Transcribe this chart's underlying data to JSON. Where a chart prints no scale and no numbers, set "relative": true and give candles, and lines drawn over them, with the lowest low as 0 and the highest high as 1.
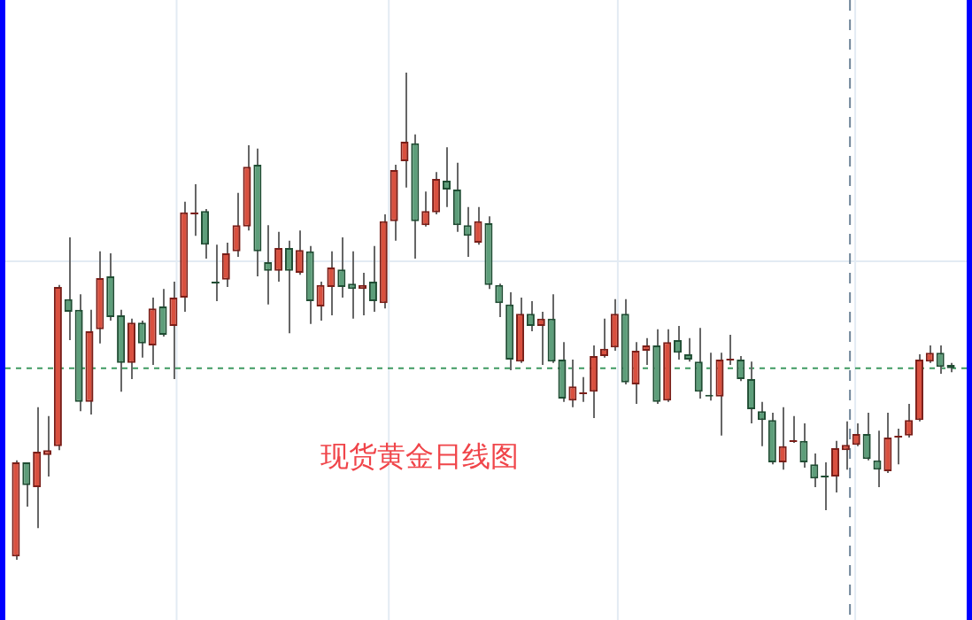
{
  "chart_data": {
    "type": "candlestick",
    "title": "现货黄金日线图",
    "relative": true,
    "categories": [
      null,
      null,
      null,
      null,
      null,
      null,
      null,
      null,
      null,
      null,
      null,
      null,
      null,
      null,
      null,
      null,
      null,
      null,
      null,
      null,
      null,
      null,
      null,
      null,
      null,
      null,
      null,
      null,
      null,
      null,
      null,
      null,
      null,
      null,
      null,
      null,
      null,
      null,
      null,
      null,
      null,
      null,
      null,
      null,
      null,
      null,
      null,
      null,
      null,
      null,
      null,
      null,
      null,
      null,
      null,
      null,
      null,
      null,
      null,
      null,
      null,
      null,
      null,
      null,
      null,
      null,
      null,
      null,
      null,
      null,
      null,
      null,
      null,
      null,
      null,
      null,
      null,
      null,
      null,
      null,
      null,
      null,
      null,
      null,
      null,
      null,
      null,
      null,
      null,
      null
    ],
    "ohlc": [
      [
        0.007,
        0.204,
        0,
        0.2
      ],
      [
        0.2,
        0.2,
        0.109,
        0.153
      ],
      [
        0.149,
        0.313,
        0.065,
        0.222
      ],
      [
        0.215,
        0.295,
        0.171,
        0.225
      ],
      [
        0.233,
        0.564,
        0.225,
        0.56
      ],
      [
        0.535,
        0.662,
        0.451,
        0.509
      ],
      [
        0.513,
        0.545,
        0.305,
        0.324
      ],
      [
        0.324,
        0.513,
        0.298,
        0.469
      ],
      [
        0.473,
        0.633,
        0.444,
        0.578
      ],
      [
        0.582,
        0.629,
        0.491,
        0.498
      ],
      [
        0.502,
        0.513,
        0.345,
        0.404
      ],
      [
        0.404,
        0.495,
        0.371,
        0.487
      ],
      [
        0.487,
        0.491,
        0.415,
        0.444
      ],
      [
        0.44,
        0.538,
        0.4,
        0.516
      ],
      [
        0.52,
        0.556,
        0.458,
        0.462
      ],
      [
        0.48,
        0.571,
        0.371,
        0.538
      ],
      [
        0.538,
        0.735,
        0.509,
        0.713
      ],
      [
        0.709,
        0.771,
        0.665,
        0.713
      ],
      [
        0.716,
        0.72,
        0.618,
        0.647
      ],
      [
        0.571,
        0.647,
        0.531,
        0.567
      ],
      [
        0.575,
        0.651,
        0.56,
        0.629
      ],
      [
        0.633,
        0.753,
        0.622,
        0.687
      ],
      [
        0.684,
        0.851,
        0.676,
        0.807
      ],
      [
        0.811,
        0.844,
        0.582,
        0.633
      ],
      [
        0.611,
        0.687,
        0.524,
        0.593
      ],
      [
        0.593,
        0.673,
        0.571,
        0.64
      ],
      [
        0.64,
        0.655,
        0.465,
        0.593
      ],
      [
        0.589,
        0.676,
        0.585,
        0.636
      ],
      [
        0.633,
        0.644,
        0.484,
        0.531
      ],
      [
        0.52,
        0.571,
        0.491,
        0.564
      ],
      [
        0.56,
        0.633,
        0.502,
        0.6
      ],
      [
        0.596,
        0.662,
        0.538,
        0.56
      ],
      [
        0.567,
        0.633,
        0.495,
        0.556
      ],
      [
        0.556,
        0.589,
        0.502,
        0.564
      ],
      [
        0.571,
        0.644,
        0.509,
        0.531
      ],
      [
        0.527,
        0.709,
        0.516,
        0.695
      ],
      [
        0.695,
        0.811,
        0.655,
        0.8
      ],
      [
        0.818,
        1,
        0.764,
        0.858
      ],
      [
        0.855,
        0.873,
        0.618,
        0.695
      ],
      [
        0.687,
        0.756,
        0.684,
        0.716
      ],
      [
        0.713,
        0.796,
        0.709,
        0.782
      ],
      [
        0.778,
        0.847,
        0.724,
        0.76
      ],
      [
        0.76,
        0.815,
        0.673,
        0.687
      ],
      [
        0.687,
        0.724,
        0.622,
        0.665
      ],
      [
        0.651,
        0.724,
        0.647,
        0.695
      ],
      [
        0.691,
        0.705,
        0.556,
        0.564
      ],
      [
        0.564,
        0.567,
        0.498,
        0.527
      ],
      [
        0.524,
        0.549,
        0.389,
        0.411
      ],
      [
        0.407,
        0.538,
        0.404,
        0.505
      ],
      [
        0.505,
        0.531,
        0.469,
        0.48
      ],
      [
        0.48,
        0.509,
        0.4,
        0.495
      ],
      [
        0.495,
        0.545,
        0.404,
        0.407
      ],
      [
        0.411,
        0.447,
        0.324,
        0.331
      ],
      [
        0.327,
        0.411,
        0.313,
        0.356
      ],
      [
        0.34,
        0.375,
        0.324,
        0.342
      ],
      [
        0.345,
        0.44,
        0.291,
        0.418
      ],
      [
        0.418,
        0.495,
        0.415,
        0.433
      ],
      [
        0.436,
        0.535,
        0.429,
        0.505
      ],
      [
        0.505,
        0.535,
        0.36,
        0.364
      ],
      [
        0.36,
        0.447,
        0.32,
        0.429
      ],
      [
        0.429,
        0.455,
        0.4,
        0.44
      ],
      [
        0.44,
        0.473,
        0.32,
        0.324
      ],
      [
        0.327,
        0.473,
        0.324,
        0.447
      ],
      [
        0.451,
        0.48,
        0.411,
        0.425
      ],
      [
        0.422,
        0.455,
        0.407,
        0.411
      ],
      [
        0.407,
        0.476,
        0.331,
        0.345
      ],
      [
        0.338,
        0.425,
        0.327,
        0.335
      ],
      [
        0.335,
        0.425,
        0.255,
        0.411
      ],
      [
        0.409,
        0.462,
        0.4,
        0.411
      ],
      [
        0.411,
        0.418,
        0.367,
        0.371
      ],
      [
        0.371,
        0.407,
        0.28,
        0.309
      ],
      [
        0.305,
        0.324,
        0.233,
        0.287
      ],
      [
        0.287,
        0.302,
        0.196,
        0.2
      ],
      [
        0.2,
        0.313,
        0.185,
        0.233
      ],
      [
        0.242,
        0.295,
        0.24,
        0.244
      ],
      [
        0.244,
        0.28,
        0.189,
        0.2
      ],
      [
        0.196,
        0.218,
        0.149,
        0.167
      ],
      [
        0.171,
        0.2,
        0.102,
        0.169
      ],
      [
        0.171,
        0.244,
        0.138,
        0.229
      ],
      [
        0.225,
        0.284,
        0.185,
        0.236
      ],
      [
        0.236,
        0.28,
        0.233,
        0.258
      ],
      [
        0.258,
        0.302,
        0.204,
        0.207
      ],
      [
        0.204,
        0.265,
        0.149,
        0.185
      ],
      [
        0.182,
        0.302,
        0.178,
        0.251
      ],
      [
        0.251,
        0.269,
        0.196,
        0.253
      ],
      [
        0.255,
        0.32,
        0.251,
        0.287
      ],
      [
        0.287,
        0.422,
        0.284,
        0.411
      ],
      [
        0.407,
        0.44,
        0.404,
        0.425
      ],
      [
        0.425,
        0.44,
        0.382,
        0.396
      ],
      [
        0.4,
        0.404,
        0.385,
        0.393
      ]
    ],
    "ref_lines": [
      {
        "axis": "y",
        "value": 0.393,
        "color": "#3f9a62",
        "line_style": "dashed"
      }
    ]
  }
}
